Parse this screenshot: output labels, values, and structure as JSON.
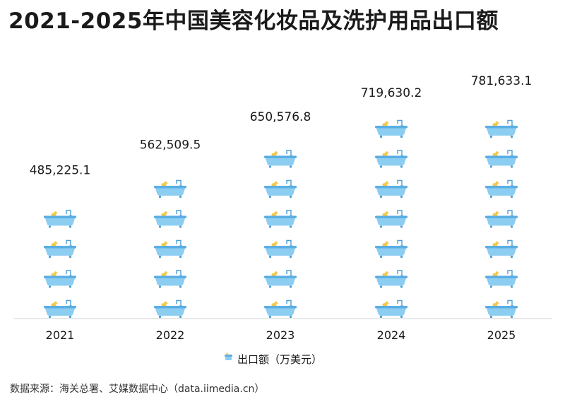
{
  "title": "2021-2025年中国美容化妆品及洗护用品出口额",
  "source": "数据来源：海关总署、艾媒数据中心（data.iimedia.cn）",
  "colors": {
    "tub": "#8ccdf2",
    "tub_edge": "#4a9fd8",
    "duck": "#f6c944",
    "axis": "#d0d0d0",
    "text": "#1a1a1a"
  },
  "chart_data": {
    "type": "bar",
    "style": "pictograph-bathtub",
    "categories": [
      "2021",
      "2022",
      "2023",
      "2024",
      "2025"
    ],
    "series": [
      {
        "name": "出口额（万美元）",
        "values": [
          485225.1,
          562509.5,
          650576.8,
          719630.2,
          781633.1
        ],
        "labels": [
          "485,225.1",
          "562,509.5",
          "650,576.8",
          "719,630.2",
          "781,633.1"
        ]
      }
    ],
    "legend": {
      "label": "出口额（万美元）",
      "position": "bottom"
    },
    "unit_per_icon": 100000,
    "ylim": [
      0,
      800000
    ],
    "grid": false,
    "xlabel": "",
    "ylabel": ""
  }
}
